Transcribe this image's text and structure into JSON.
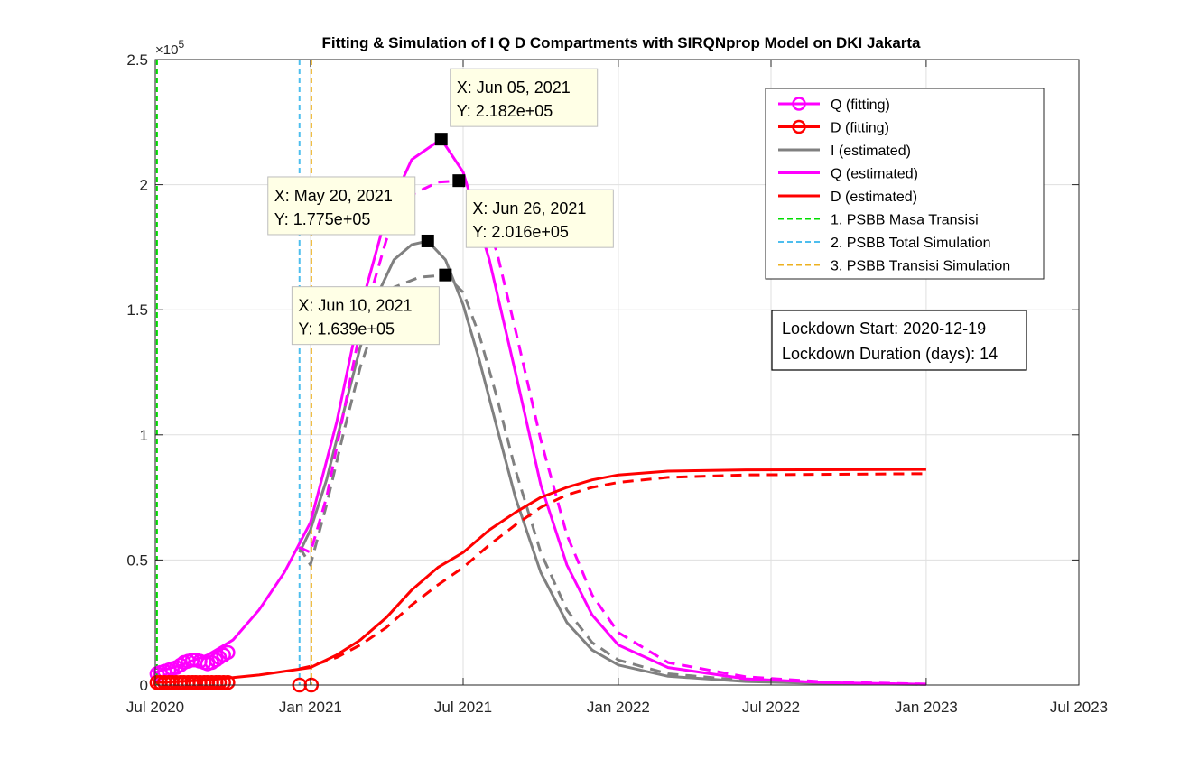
{
  "chart_data": {
    "type": "line",
    "title": "Fitting & Simulation of  I Q D Compartments with SIRQNprop Model on DKI Jakarta",
    "exponent_label": "×10",
    "exponent_power": "5",
    "x_axis": {
      "type": "date",
      "range": [
        "2020-07-01",
        "2023-07-01"
      ],
      "ticks": [
        {
          "date": "2020-07-01",
          "label": "Jul 2020"
        },
        {
          "date": "2021-01-01",
          "label": "Jan 2021"
        },
        {
          "date": "2021-07-01",
          "label": "Jul 2021"
        },
        {
          "date": "2022-01-01",
          "label": "Jan 2022"
        },
        {
          "date": "2022-07-01",
          "label": "Jul 2022"
        },
        {
          "date": "2023-01-01",
          "label": "Jan 2023"
        },
        {
          "date": "2023-07-01",
          "label": "Jul 2023"
        }
      ]
    },
    "y_axis": {
      "range": [
        0,
        2.5
      ],
      "scale_factor": 100000,
      "ticks": [
        {
          "value": 0,
          "label": "0"
        },
        {
          "value": 0.5,
          "label": "0.5"
        },
        {
          "value": 1,
          "label": "1"
        },
        {
          "value": 1.5,
          "label": "1.5"
        },
        {
          "value": 2,
          "label": "2"
        },
        {
          "value": 2.5,
          "label": "2.5"
        }
      ]
    },
    "grid": true,
    "legend": {
      "placement": "top-right",
      "entries": [
        {
          "label": "Q (fitting)",
          "color": "#FF00FF",
          "style": "solid-circle"
        },
        {
          "label": "D (fitting)",
          "color": "#FF0000",
          "style": "solid-circle"
        },
        {
          "label": "I (estimated)",
          "color": "#808080",
          "style": "solid"
        },
        {
          "label": "Q (estimated)",
          "color": "#FF00FF",
          "style": "solid"
        },
        {
          "label": "D (estimated)",
          "color": "#FF0000",
          "style": "solid"
        },
        {
          "label": "1. PSBB Masa Transisi",
          "color": "#00DD00",
          "style": "dashed"
        },
        {
          "label": "2. PSBB Total Simulation",
          "color": "#4DBEEE",
          "style": "dashed"
        },
        {
          "label": "3. PSBB Transisi Simulation",
          "color": "#EDB120",
          "style": "dashed"
        }
      ]
    },
    "vertical_lines": [
      {
        "date": "2020-07-03",
        "color": "#00DD00"
      },
      {
        "date": "2020-12-19",
        "color": "#4DBEEE"
      },
      {
        "date": "2021-01-02",
        "color": "#EDB120"
      }
    ],
    "series": [
      {
        "key": "I_solid",
        "color": "#808080",
        "dash": false,
        "points": [
          [
            "2020-12-19",
            0.53
          ],
          [
            "2021-01-01",
            0.62
          ],
          [
            "2021-01-20",
            0.82
          ],
          [
            "2021-02-10",
            1.1
          ],
          [
            "2021-03-01",
            1.35
          ],
          [
            "2021-03-20",
            1.55
          ],
          [
            "2021-04-10",
            1.7
          ],
          [
            "2021-05-01",
            1.76
          ],
          [
            "2021-05-20",
            1.775
          ],
          [
            "2021-06-10",
            1.7
          ],
          [
            "2021-07-01",
            1.52
          ],
          [
            "2021-07-20",
            1.3
          ],
          [
            "2021-08-10",
            1.03
          ],
          [
            "2021-09-01",
            0.75
          ],
          [
            "2021-10-01",
            0.45
          ],
          [
            "2021-11-01",
            0.25
          ],
          [
            "2021-12-01",
            0.14
          ],
          [
            "2022-01-01",
            0.08
          ],
          [
            "2022-03-01",
            0.035
          ],
          [
            "2022-06-01",
            0.014
          ],
          [
            "2022-09-01",
            0.006
          ],
          [
            "2023-01-01",
            0.002
          ]
        ]
      },
      {
        "key": "I_dashed",
        "color": "#808080",
        "dash": true,
        "points": [
          [
            "2020-12-19",
            0.55
          ],
          [
            "2021-01-01",
            0.48
          ],
          [
            "2021-01-20",
            0.72
          ],
          [
            "2021-02-10",
            1.02
          ],
          [
            "2021-03-01",
            1.27
          ],
          [
            "2021-03-20",
            1.46
          ],
          [
            "2021-04-10",
            1.59
          ],
          [
            "2021-05-10",
            1.63
          ],
          [
            "2021-06-10",
            1.639
          ],
          [
            "2021-07-01",
            1.57
          ],
          [
            "2021-07-20",
            1.4
          ],
          [
            "2021-08-10",
            1.15
          ],
          [
            "2021-09-01",
            0.86
          ],
          [
            "2021-10-01",
            0.53
          ],
          [
            "2021-11-01",
            0.3
          ],
          [
            "2021-12-01",
            0.17
          ],
          [
            "2022-01-01",
            0.1
          ],
          [
            "2022-03-01",
            0.045
          ],
          [
            "2022-06-01",
            0.018
          ],
          [
            "2022-09-01",
            0.008
          ],
          [
            "2023-01-01",
            0.003
          ]
        ]
      },
      {
        "key": "Q_solid",
        "color": "#FF00FF",
        "dash": false,
        "points": [
          [
            "2020-07-01",
            0.05
          ],
          [
            "2020-08-01",
            0.08
          ],
          [
            "2020-09-01",
            0.12
          ],
          [
            "2020-10-01",
            0.18
          ],
          [
            "2020-11-01",
            0.3
          ],
          [
            "2020-12-01",
            0.45
          ],
          [
            "2021-01-01",
            0.65
          ],
          [
            "2021-02-01",
            1.05
          ],
          [
            "2021-03-01",
            1.5
          ],
          [
            "2021-04-01",
            1.88
          ],
          [
            "2021-05-01",
            2.1
          ],
          [
            "2021-06-05",
            2.182
          ],
          [
            "2021-07-01",
            2.05
          ],
          [
            "2021-08-01",
            1.7
          ],
          [
            "2021-09-01",
            1.25
          ],
          [
            "2021-10-01",
            0.8
          ],
          [
            "2021-11-01",
            0.48
          ],
          [
            "2021-12-01",
            0.28
          ],
          [
            "2022-01-01",
            0.16
          ],
          [
            "2022-03-01",
            0.07
          ],
          [
            "2022-06-01",
            0.025
          ],
          [
            "2022-09-01",
            0.01
          ],
          [
            "2023-01-01",
            0.003
          ]
        ]
      },
      {
        "key": "Q_dashed",
        "color": "#FF00FF",
        "dash": true,
        "points": [
          [
            "2020-12-19",
            0.55
          ],
          [
            "2021-01-01",
            0.53
          ],
          [
            "2021-01-20",
            0.75
          ],
          [
            "2021-02-10",
            1.1
          ],
          [
            "2021-03-01",
            1.42
          ],
          [
            "2021-04-01",
            1.78
          ],
          [
            "2021-05-01",
            1.96
          ],
          [
            "2021-06-01",
            2.01
          ],
          [
            "2021-06-26",
            2.016
          ],
          [
            "2021-07-20",
            1.93
          ],
          [
            "2021-08-10",
            1.73
          ],
          [
            "2021-09-01",
            1.42
          ],
          [
            "2021-10-01",
            0.98
          ],
          [
            "2021-11-01",
            0.6
          ],
          [
            "2021-12-01",
            0.36
          ],
          [
            "2022-01-01",
            0.21
          ],
          [
            "2022-03-01",
            0.09
          ],
          [
            "2022-06-01",
            0.033
          ],
          [
            "2022-09-01",
            0.013
          ],
          [
            "2023-01-01",
            0.004
          ]
        ]
      },
      {
        "key": "D_solid",
        "color": "#FF0000",
        "dash": false,
        "points": [
          [
            "2020-07-01",
            0.01
          ],
          [
            "2020-09-01",
            0.02
          ],
          [
            "2020-11-01",
            0.04
          ],
          [
            "2021-01-01",
            0.07
          ],
          [
            "2021-02-01",
            0.12
          ],
          [
            "2021-03-01",
            0.18
          ],
          [
            "2021-04-01",
            0.27
          ],
          [
            "2021-05-01",
            0.38
          ],
          [
            "2021-06-01",
            0.47
          ],
          [
            "2021-07-01",
            0.53
          ],
          [
            "2021-08-01",
            0.62
          ],
          [
            "2021-09-01",
            0.69
          ],
          [
            "2021-10-01",
            0.75
          ],
          [
            "2021-11-01",
            0.79
          ],
          [
            "2021-12-01",
            0.82
          ],
          [
            "2022-01-01",
            0.84
          ],
          [
            "2022-03-01",
            0.855
          ],
          [
            "2022-06-01",
            0.86
          ],
          [
            "2023-01-01",
            0.862
          ]
        ]
      },
      {
        "key": "D_dashed",
        "color": "#FF0000",
        "dash": true,
        "points": [
          [
            "2020-12-19",
            0.065
          ],
          [
            "2021-01-01",
            0.075
          ],
          [
            "2021-02-01",
            0.11
          ],
          [
            "2021-03-01",
            0.16
          ],
          [
            "2021-04-01",
            0.23
          ],
          [
            "2021-05-01",
            0.32
          ],
          [
            "2021-06-01",
            0.4
          ],
          [
            "2021-07-01",
            0.47
          ],
          [
            "2021-08-01",
            0.56
          ],
          [
            "2021-09-01",
            0.64
          ],
          [
            "2021-10-01",
            0.71
          ],
          [
            "2021-11-01",
            0.76
          ],
          [
            "2021-12-01",
            0.79
          ],
          [
            "2022-01-01",
            0.81
          ],
          [
            "2022-03-01",
            0.83
          ],
          [
            "2022-06-01",
            0.84
          ],
          [
            "2023-01-01",
            0.845
          ]
        ]
      }
    ],
    "fitting_points": [
      {
        "key": "Q_fit",
        "color": "#FF00FF",
        "dates_from": "2020-07-03",
        "dates_to": "2020-09-25",
        "values": [
          0.045,
          0.05,
          0.055,
          0.06,
          0.065,
          0.07,
          0.08,
          0.09,
          0.095,
          0.1,
          0.1,
          0.095,
          0.09,
          0.085,
          0.09,
          0.1,
          0.11,
          0.12,
          0.13
        ]
      },
      {
        "key": "D_fit",
        "color": "#FF0000",
        "dates_from": "2020-07-03",
        "dates_to": "2020-09-25",
        "values": [
          0.01,
          0.01,
          0.01,
          0.01,
          0.01,
          0.01,
          0.01,
          0.01,
          0.01,
          0.01,
          0.01,
          0.01,
          0.01,
          0.01,
          0.01,
          0.01,
          0.01,
          0.01,
          0.01
        ]
      },
      {
        "key": "D_fit_extra",
        "color": "#FF0000",
        "dates": [
          "2020-12-19",
          "2021-01-02"
        ],
        "values": [
          0.0,
          0.0
        ]
      }
    ],
    "datatips": [
      {
        "date": "2021-06-05",
        "value": 2.182,
        "x_label": "X: Jun 05, 2021",
        "y_label": "Y: 2.182e+05",
        "anchor": "above"
      },
      {
        "date": "2021-05-20",
        "value": 1.775,
        "x_label": "X: May 20, 2021",
        "y_label": "Y: 1.775e+05",
        "anchor": "upper-left"
      },
      {
        "date": "2021-06-26",
        "value": 2.016,
        "x_label": "X: Jun 26, 2021",
        "y_label": "Y: 2.016e+05",
        "anchor": "right"
      },
      {
        "date": "2021-06-10",
        "value": 1.639,
        "x_label": "X: Jun 10, 2021",
        "y_label": "Y: 1.639e+05",
        "anchor": "lower-left"
      }
    ],
    "annotation": {
      "lines": [
        "Lockdown Start: 2020-12-19",
        "Lockdown Duration (days): 14"
      ],
      "placement": "right-middle"
    }
  }
}
